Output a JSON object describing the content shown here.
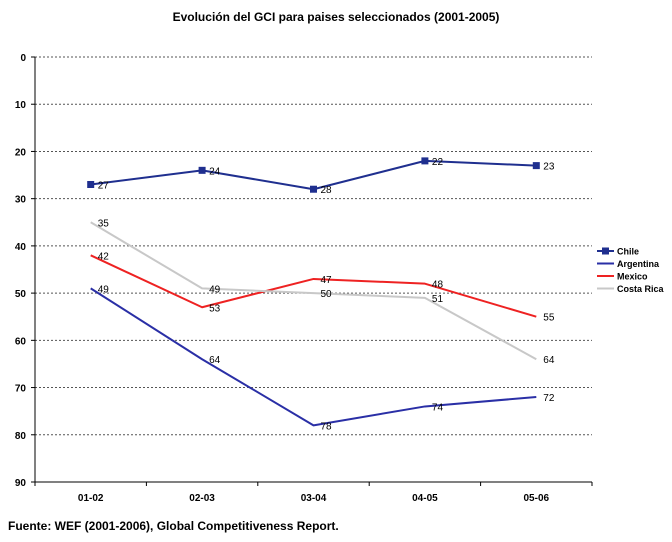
{
  "chart_data": {
    "type": "line",
    "title": "Evolución del GCI para paises seleccionados (2001-2005)",
    "xlabel": "",
    "ylabel": "",
    "categories": [
      "01-02",
      "02-03",
      "03-04",
      "04-05",
      "05-06"
    ],
    "y_axis": {
      "min": 0,
      "max": 90,
      "step": 10,
      "reversed": true,
      "ticks": [
        "0",
        "10",
        "20",
        "30",
        "40",
        "50",
        "60",
        "70",
        "80",
        "90"
      ]
    },
    "grid": "horizontal dotted",
    "legend_position": "right",
    "series": [
      {
        "name": "Chile",
        "values": [
          27,
          24,
          28,
          22,
          23
        ],
        "color": "#1f2f8f",
        "marker": "square"
      },
      {
        "name": "Argentina",
        "values": [
          49,
          64,
          78,
          74,
          72
        ],
        "color": "#2a2fa6",
        "marker": "none"
      },
      {
        "name": "Mexico",
        "values": [
          42,
          53,
          47,
          48,
          55
        ],
        "color": "#ee2222",
        "marker": "none"
      },
      {
        "name": "Costa Rica",
        "values": [
          35,
          49,
          50,
          51,
          64
        ],
        "color": "#c8c8c8",
        "marker": "none"
      }
    ]
  },
  "source_note": "Fuente: WEF (2001-2006), Global Competitiveness Report."
}
